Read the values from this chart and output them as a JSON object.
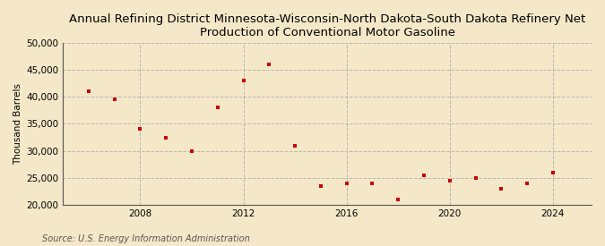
{
  "title": "Annual Refining District Minnesota-Wisconsin-North Dakota-South Dakota Refinery Net\nProduction of Conventional Motor Gasoline",
  "ylabel": "Thousand Barrels",
  "source": "Source: U.S. Energy Information Administration",
  "background_color": "#f5e8c8",
  "plot_background_color": "#f5e8c8",
  "marker_color": "#cc0000",
  "marker": "s",
  "markersize": 3.5,
  "years": [
    2006,
    2007,
    2008,
    2009,
    2010,
    2011,
    2012,
    2013,
    2014,
    2015,
    2016,
    2017,
    2018,
    2019,
    2020,
    2021,
    2022,
    2023,
    2024
  ],
  "values": [
    41000,
    39500,
    34000,
    32500,
    30000,
    38000,
    43000,
    46000,
    31000,
    23500,
    24000,
    24000,
    21000,
    25500,
    24500,
    25000,
    23000,
    24000,
    26000
  ],
  "ylim": [
    20000,
    50000
  ],
  "yticks": [
    20000,
    25000,
    30000,
    35000,
    40000,
    45000,
    50000
  ],
  "xlim": [
    2005,
    2025.5
  ],
  "xticks": [
    2008,
    2012,
    2016,
    2020,
    2024
  ],
  "grid_color": "#aaaaaa",
  "grid_linestyle": "--",
  "grid_alpha": 0.8,
  "title_fontsize": 9.5,
  "axis_fontsize": 7.5,
  "source_fontsize": 7.0
}
